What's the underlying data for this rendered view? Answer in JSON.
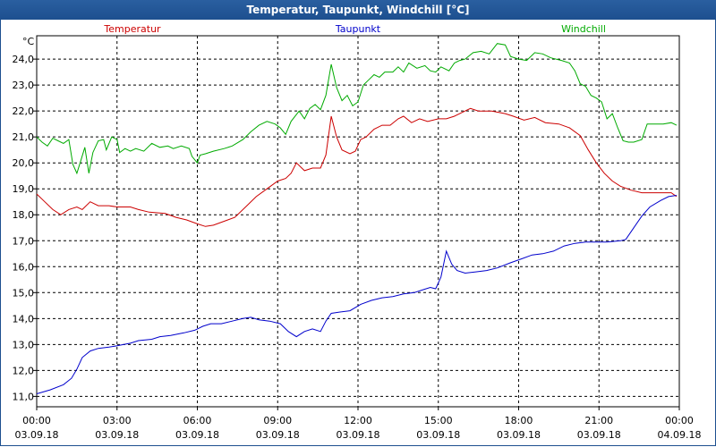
{
  "window": {
    "title": "Temperatur, Taupunkt, Windchill [°C]"
  },
  "chart_data": {
    "type": "line",
    "title": "Temperatur, Taupunkt, Windchill [°C]",
    "ylabel": "°C",
    "ylim": [
      10.6,
      24.9
    ],
    "yticks": [
      "11,0",
      "12,0",
      "13,0",
      "14,0",
      "15,0",
      "16,0",
      "17,0",
      "18,0",
      "19,0",
      "20,0",
      "21,0",
      "22,0",
      "23,0",
      "24,0"
    ],
    "ytick_values": [
      11,
      12,
      13,
      14,
      15,
      16,
      17,
      18,
      19,
      20,
      21,
      22,
      23,
      24
    ],
    "xlim": [
      0,
      24
    ],
    "xticks": [
      {
        "time": "00:00",
        "date": "03.09.18"
      },
      {
        "time": "03:00",
        "date": "03.09.18"
      },
      {
        "time": "06:00",
        "date": "03.09.18"
      },
      {
        "time": "09:00",
        "date": "03.09.18"
      },
      {
        "time": "12:00",
        "date": "03.09.18"
      },
      {
        "time": "15:00",
        "date": "03.09.18"
      },
      {
        "time": "18:00",
        "date": "03.09.18"
      },
      {
        "time": "21:00",
        "date": "03.09.18"
      },
      {
        "time": "00:00",
        "date": "04.09.18"
      }
    ],
    "grid": true,
    "legend_position": "top",
    "series": [
      {
        "name": "Temperatur",
        "color": "#cc0000",
        "points": [
          [
            0,
            18.8
          ],
          [
            0.3,
            18.5
          ],
          [
            0.6,
            18.2
          ],
          [
            0.9,
            18.0
          ],
          [
            1.2,
            18.2
          ],
          [
            1.5,
            18.3
          ],
          [
            1.7,
            18.2
          ],
          [
            2.0,
            18.5
          ],
          [
            2.3,
            18.35
          ],
          [
            2.7,
            18.35
          ],
          [
            3.0,
            18.3
          ],
          [
            3.5,
            18.3
          ],
          [
            3.8,
            18.2
          ],
          [
            4.2,
            18.1
          ],
          [
            4.8,
            18.05
          ],
          [
            5.2,
            17.9
          ],
          [
            5.6,
            17.8
          ],
          [
            6.0,
            17.65
          ],
          [
            6.3,
            17.55
          ],
          [
            6.6,
            17.6
          ],
          [
            7.0,
            17.75
          ],
          [
            7.4,
            17.9
          ],
          [
            7.8,
            18.3
          ],
          [
            8.2,
            18.7
          ],
          [
            8.6,
            19.0
          ],
          [
            9.0,
            19.3
          ],
          [
            9.3,
            19.4
          ],
          [
            9.5,
            19.6
          ],
          [
            9.7,
            20.0
          ],
          [
            10.0,
            19.7
          ],
          [
            10.3,
            19.8
          ],
          [
            10.6,
            19.8
          ],
          [
            10.8,
            20.3
          ],
          [
            11.0,
            21.8
          ],
          [
            11.2,
            21.0
          ],
          [
            11.4,
            20.5
          ],
          [
            11.7,
            20.35
          ],
          [
            11.9,
            20.45
          ],
          [
            12.1,
            20.9
          ],
          [
            12.3,
            21.0
          ],
          [
            12.6,
            21.3
          ],
          [
            12.9,
            21.45
          ],
          [
            13.2,
            21.45
          ],
          [
            13.5,
            21.7
          ],
          [
            13.7,
            21.8
          ],
          [
            14.0,
            21.55
          ],
          [
            14.3,
            21.7
          ],
          [
            14.6,
            21.6
          ],
          [
            15.0,
            21.7
          ],
          [
            15.3,
            21.7
          ],
          [
            15.6,
            21.8
          ],
          [
            15.9,
            21.95
          ],
          [
            16.2,
            22.1
          ],
          [
            16.5,
            22.0
          ],
          [
            17.0,
            22.0
          ],
          [
            17.5,
            21.9
          ],
          [
            17.8,
            21.8
          ],
          [
            18.2,
            21.65
          ],
          [
            18.6,
            21.75
          ],
          [
            19.0,
            21.55
          ],
          [
            19.5,
            21.5
          ],
          [
            19.9,
            21.35
          ],
          [
            20.3,
            21.05
          ],
          [
            20.6,
            20.5
          ],
          [
            20.9,
            20.0
          ],
          [
            21.2,
            19.6
          ],
          [
            21.5,
            19.3
          ],
          [
            21.8,
            19.1
          ],
          [
            22.2,
            18.95
          ],
          [
            22.6,
            18.85
          ],
          [
            23.0,
            18.85
          ],
          [
            23.4,
            18.85
          ],
          [
            23.7,
            18.85
          ],
          [
            23.9,
            18.7
          ]
        ]
      },
      {
        "name": "Taupunkt",
        "color": "#0000cc",
        "points": [
          [
            0,
            11.1
          ],
          [
            0.5,
            11.25
          ],
          [
            1.0,
            11.45
          ],
          [
            1.3,
            11.7
          ],
          [
            1.5,
            12.05
          ],
          [
            1.7,
            12.5
          ],
          [
            2.0,
            12.75
          ],
          [
            2.3,
            12.85
          ],
          [
            2.7,
            12.9
          ],
          [
            3.0,
            12.95
          ],
          [
            3.5,
            13.05
          ],
          [
            3.8,
            13.15
          ],
          [
            4.3,
            13.2
          ],
          [
            4.6,
            13.3
          ],
          [
            5.0,
            13.35
          ],
          [
            5.5,
            13.45
          ],
          [
            5.9,
            13.55
          ],
          [
            6.2,
            13.7
          ],
          [
            6.5,
            13.8
          ],
          [
            6.9,
            13.8
          ],
          [
            7.3,
            13.9
          ],
          [
            7.7,
            14.0
          ],
          [
            8.0,
            14.05
          ],
          [
            8.3,
            13.95
          ],
          [
            8.7,
            13.9
          ],
          [
            9.1,
            13.8
          ],
          [
            9.4,
            13.5
          ],
          [
            9.7,
            13.3
          ],
          [
            10.0,
            13.5
          ],
          [
            10.3,
            13.6
          ],
          [
            10.6,
            13.5
          ],
          [
            10.8,
            13.9
          ],
          [
            11.0,
            14.2
          ],
          [
            11.3,
            14.25
          ],
          [
            11.7,
            14.3
          ],
          [
            12.1,
            14.55
          ],
          [
            12.5,
            14.7
          ],
          [
            12.9,
            14.8
          ],
          [
            13.3,
            14.85
          ],
          [
            13.7,
            14.95
          ],
          [
            14.1,
            15.0
          ],
          [
            14.4,
            15.1
          ],
          [
            14.7,
            15.2
          ],
          [
            14.9,
            15.15
          ],
          [
            15.1,
            15.6
          ],
          [
            15.3,
            16.6
          ],
          [
            15.5,
            16.1
          ],
          [
            15.7,
            15.85
          ],
          [
            16.0,
            15.75
          ],
          [
            16.4,
            15.8
          ],
          [
            16.8,
            15.85
          ],
          [
            17.2,
            15.95
          ],
          [
            17.7,
            16.15
          ],
          [
            18.1,
            16.3
          ],
          [
            18.5,
            16.45
          ],
          [
            18.9,
            16.5
          ],
          [
            19.3,
            16.6
          ],
          [
            19.7,
            16.8
          ],
          [
            20.1,
            16.9
          ],
          [
            20.5,
            16.95
          ],
          [
            20.9,
            16.95
          ],
          [
            21.3,
            16.95
          ],
          [
            21.8,
            17.0
          ],
          [
            22.0,
            17.05
          ],
          [
            22.3,
            17.5
          ],
          [
            22.6,
            17.95
          ],
          [
            22.9,
            18.3
          ],
          [
            23.3,
            18.55
          ],
          [
            23.6,
            18.7
          ],
          [
            23.9,
            18.75
          ]
        ]
      },
      {
        "name": "Windchill",
        "color": "#00aa00",
        "points": [
          [
            0,
            21.0
          ],
          [
            0.2,
            20.8
          ],
          [
            0.4,
            20.65
          ],
          [
            0.6,
            20.95
          ],
          [
            0.8,
            20.85
          ],
          [
            1.0,
            20.75
          ],
          [
            1.2,
            20.9
          ],
          [
            1.35,
            19.95
          ],
          [
            1.5,
            19.6
          ],
          [
            1.65,
            20.1
          ],
          [
            1.8,
            20.6
          ],
          [
            1.95,
            19.6
          ],
          [
            2.1,
            20.4
          ],
          [
            2.3,
            20.85
          ],
          [
            2.5,
            20.9
          ],
          [
            2.6,
            20.5
          ],
          [
            2.8,
            21.0
          ],
          [
            3.0,
            20.9
          ],
          [
            3.1,
            20.4
          ],
          [
            3.3,
            20.55
          ],
          [
            3.5,
            20.45
          ],
          [
            3.7,
            20.55
          ],
          [
            4.0,
            20.45
          ],
          [
            4.3,
            20.75
          ],
          [
            4.6,
            20.6
          ],
          [
            4.9,
            20.65
          ],
          [
            5.1,
            20.55
          ],
          [
            5.4,
            20.65
          ],
          [
            5.7,
            20.55
          ],
          [
            5.8,
            20.25
          ],
          [
            6.0,
            20.0
          ],
          [
            6.1,
            20.3
          ],
          [
            6.3,
            20.35
          ],
          [
            6.6,
            20.45
          ],
          [
            7.0,
            20.55
          ],
          [
            7.3,
            20.65
          ],
          [
            7.7,
            20.9
          ],
          [
            8.0,
            21.2
          ],
          [
            8.3,
            21.45
          ],
          [
            8.6,
            21.6
          ],
          [
            8.9,
            21.5
          ],
          [
            9.1,
            21.35
          ],
          [
            9.3,
            21.1
          ],
          [
            9.5,
            21.6
          ],
          [
            9.8,
            22.0
          ],
          [
            10.0,
            21.7
          ],
          [
            10.2,
            22.1
          ],
          [
            10.4,
            22.25
          ],
          [
            10.6,
            22.05
          ],
          [
            10.8,
            22.6
          ],
          [
            11.0,
            23.8
          ],
          [
            11.2,
            22.9
          ],
          [
            11.4,
            22.4
          ],
          [
            11.6,
            22.6
          ],
          [
            11.8,
            22.2
          ],
          [
            12.0,
            22.35
          ],
          [
            12.2,
            23.0
          ],
          [
            12.4,
            23.2
          ],
          [
            12.6,
            23.4
          ],
          [
            12.8,
            23.3
          ],
          [
            13.0,
            23.5
          ],
          [
            13.3,
            23.5
          ],
          [
            13.5,
            23.7
          ],
          [
            13.7,
            23.5
          ],
          [
            13.9,
            23.85
          ],
          [
            14.2,
            23.65
          ],
          [
            14.5,
            23.75
          ],
          [
            14.7,
            23.55
          ],
          [
            14.9,
            23.5
          ],
          [
            15.1,
            23.7
          ],
          [
            15.4,
            23.55
          ],
          [
            15.6,
            23.85
          ],
          [
            15.8,
            23.95
          ],
          [
            16.0,
            24.0
          ],
          [
            16.3,
            24.25
          ],
          [
            16.6,
            24.3
          ],
          [
            16.9,
            24.2
          ],
          [
            17.2,
            24.6
          ],
          [
            17.5,
            24.55
          ],
          [
            17.7,
            24.1
          ],
          [
            18.0,
            24.0
          ],
          [
            18.3,
            23.95
          ],
          [
            18.6,
            24.25
          ],
          [
            18.9,
            24.2
          ],
          [
            19.2,
            24.05
          ],
          [
            19.6,
            23.95
          ],
          [
            19.9,
            23.85
          ],
          [
            20.1,
            23.55
          ],
          [
            20.3,
            23.05
          ],
          [
            20.5,
            22.95
          ],
          [
            20.7,
            22.6
          ],
          [
            20.9,
            22.5
          ],
          [
            21.1,
            22.35
          ],
          [
            21.3,
            21.7
          ],
          [
            21.5,
            21.9
          ],
          [
            21.7,
            21.35
          ],
          [
            21.9,
            20.85
          ],
          [
            22.1,
            20.8
          ],
          [
            22.3,
            20.8
          ],
          [
            22.6,
            20.9
          ],
          [
            22.8,
            21.5
          ],
          [
            23.1,
            21.5
          ],
          [
            23.4,
            21.5
          ],
          [
            23.7,
            21.55
          ],
          [
            23.9,
            21.45
          ]
        ]
      }
    ]
  }
}
